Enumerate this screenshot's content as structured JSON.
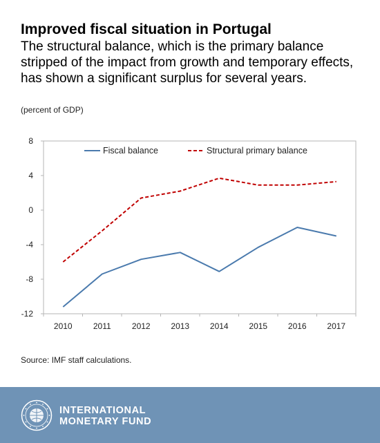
{
  "header": {
    "title": "Improved fiscal situation in Portugal",
    "subtitle": "The structural balance, which is the primary balance stripped of the impact from growth and temporary effects, has shown a significant surplus for several years.",
    "unit": "(percent of GDP)"
  },
  "chart_data": {
    "type": "line",
    "x": [
      "2010",
      "2011",
      "2012",
      "2013",
      "2014",
      "2015",
      "2016",
      "2017"
    ],
    "series": [
      {
        "name": "Fiscal balance",
        "values": [
          -11.2,
          -7.4,
          -5.7,
          -4.9,
          -7.1,
          -4.3,
          -2.0,
          -3.0
        ],
        "color": "#4a7aad",
        "style": "solid"
      },
      {
        "name": "Structural primary balance",
        "values": [
          -6.0,
          -2.4,
          1.4,
          2.2,
          3.7,
          2.9,
          2.9,
          3.3
        ],
        "color": "#c00000",
        "style": "dashed"
      }
    ],
    "ylim": [
      -12,
      8
    ],
    "yticks": [
      8,
      4,
      0,
      -4,
      -8,
      -12
    ],
    "ytick_labels": [
      "8",
      "4",
      "0",
      "-4",
      "-8",
      "-12"
    ],
    "legend_position": "top",
    "grid": false
  },
  "footer": {
    "source": "Source: IMF staff calculations.",
    "org_line1": "INTERNATIONAL",
    "org_line2": "MONETARY FUND",
    "logo_icon": "imf-seal-icon"
  }
}
